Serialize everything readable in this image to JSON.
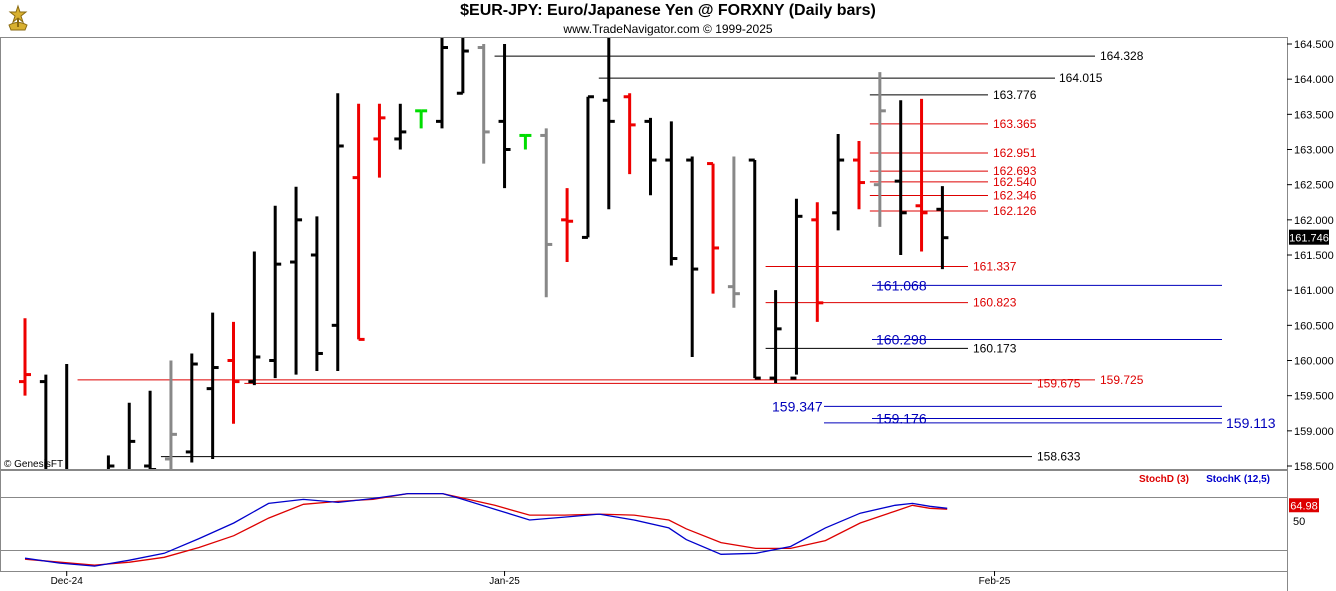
{
  "header": {
    "title": "$EUR-JPY:  Euro/Japanese Yen @ FORXNY  (Daily bars)",
    "subtitle": "www.TradeNavigator.com © 1999-2025",
    "watermark": "© GenesisFT"
  },
  "colors": {
    "up": "#000000",
    "down": "#ee0000",
    "doji_up": "#00dd00",
    "gray": "#888888",
    "red_line": "#dd0000",
    "blue_line": "#0000bb",
    "black_line": "#000000",
    "stochD": "#dd0000",
    "stochK": "#0000cc"
  },
  "chart_data": [
    {
      "type": "ohlc",
      "title": "$EUR-JPY: Euro/Japanese Yen @ FORXNY (Daily bars)",
      "y_axis_ticks": [
        "164.500",
        "164.000",
        "163.500",
        "163.000",
        "162.500",
        "162.000",
        "161.500",
        "161.000",
        "160.500",
        "160.000",
        "159.500",
        "159.000",
        "158.500"
      ],
      "ylim": [
        158.4,
        164.5
      ],
      "x_labels": [
        {
          "label": "Dec-24",
          "index": 2
        },
        {
          "label": "Jan-25",
          "index": 23
        },
        {
          "label": "Feb-25",
          "index": 46.5
        }
      ],
      "last_price": "161.746",
      "last_value": 161.746,
      "bars": [
        {
          "o": 159.7,
          "h": 160.6,
          "l": 159.5,
          "c": 159.8,
          "col": "red"
        },
        {
          "o": 159.7,
          "h": 159.8,
          "l": 157.8,
          "c": 158.2,
          "col": "black"
        },
        {
          "o": 158.1,
          "h": 159.95,
          "l": 157.9,
          "c": 158.0,
          "col": "black"
        },
        {
          "o": 158.0,
          "h": 158.3,
          "l": 157.8,
          "c": 158.1,
          "col": "black"
        },
        {
          "o": 158.2,
          "h": 158.65,
          "l": 158.0,
          "c": 158.5,
          "col": "black"
        },
        {
          "o": 158.4,
          "h": 159.4,
          "l": 158.1,
          "c": 158.85,
          "col": "black"
        },
        {
          "o": 158.5,
          "h": 159.57,
          "l": 158.1,
          "c": 158.45,
          "col": "black"
        },
        {
          "o": 158.6,
          "h": 160.0,
          "l": 158.4,
          "c": 158.95,
          "col": "gray"
        },
        {
          "o": 158.7,
          "h": 160.1,
          "l": 158.55,
          "c": 159.95,
          "col": "black"
        },
        {
          "o": 159.6,
          "h": 160.68,
          "l": 158.6,
          "c": 159.9,
          "col": "black"
        },
        {
          "o": 160.0,
          "h": 160.55,
          "l": 159.1,
          "c": 159.7,
          "col": "red"
        },
        {
          "o": 159.7,
          "h": 161.55,
          "l": 159.65,
          "c": 160.05,
          "col": "black"
        },
        {
          "o": 160.0,
          "h": 162.2,
          "l": 159.75,
          "c": 161.37,
          "col": "black"
        },
        {
          "o": 161.4,
          "h": 162.47,
          "l": 159.8,
          "c": 162.0,
          "col": "black"
        },
        {
          "o": 161.5,
          "h": 162.05,
          "l": 159.85,
          "c": 160.1,
          "col": "black"
        },
        {
          "o": 160.5,
          "h": 163.8,
          "l": 159.85,
          "c": 163.05,
          "col": "black"
        },
        {
          "o": 162.6,
          "h": 163.65,
          "l": 160.3,
          "c": 160.3,
          "col": "red"
        },
        {
          "o": 163.15,
          "h": 163.65,
          "l": 162.6,
          "c": 163.45,
          "col": "red"
        },
        {
          "o": 163.15,
          "h": 163.65,
          "l": 163.0,
          "c": 163.25,
          "col": "black"
        },
        {
          "o": 163.55,
          "h": 163.55,
          "l": 163.3,
          "c": 163.55,
          "col": "green"
        },
        {
          "o": 163.4,
          "h": 164.65,
          "l": 163.3,
          "c": 164.45,
          "col": "black"
        },
        {
          "o": 163.8,
          "h": 164.85,
          "l": 163.8,
          "c": 164.4,
          "col": "black"
        },
        {
          "o": 164.45,
          "h": 164.5,
          "l": 162.8,
          "c": 163.25,
          "col": "gray"
        },
        {
          "o": 163.4,
          "h": 164.5,
          "l": 162.45,
          "c": 163.0,
          "col": "black"
        },
        {
          "o": 163.2,
          "h": 163.2,
          "l": 163.0,
          "c": 163.2,
          "col": "green"
        },
        {
          "o": 163.2,
          "h": 163.3,
          "l": 160.9,
          "c": 161.65,
          "col": "gray"
        },
        {
          "o": 162.0,
          "h": 162.45,
          "l": 161.4,
          "c": 161.98,
          "col": "red"
        },
        {
          "o": 161.75,
          "h": 163.75,
          "l": 161.75,
          "c": 163.75,
          "col": "black"
        },
        {
          "o": 163.7,
          "h": 164.9,
          "l": 162.15,
          "c": 163.4,
          "col": "black"
        },
        {
          "o": 163.75,
          "h": 163.8,
          "l": 162.65,
          "c": 163.35,
          "col": "red"
        },
        {
          "o": 163.4,
          "h": 163.45,
          "l": 162.35,
          "c": 162.85,
          "col": "black"
        },
        {
          "o": 162.85,
          "h": 163.4,
          "l": 161.35,
          "c": 161.45,
          "col": "black"
        },
        {
          "o": 162.85,
          "h": 162.9,
          "l": 160.05,
          "c": 161.3,
          "col": "black"
        },
        {
          "o": 162.8,
          "h": 162.8,
          "l": 160.95,
          "c": 161.6,
          "col": "red"
        },
        {
          "o": 161.05,
          "h": 162.9,
          "l": 160.75,
          "c": 160.95,
          "col": "gray"
        },
        {
          "o": 162.85,
          "h": 162.85,
          "l": 159.75,
          "c": 159.75,
          "col": "black"
        },
        {
          "o": 159.75,
          "h": 161.0,
          "l": 159.68,
          "c": 160.45,
          "col": "black"
        },
        {
          "o": 159.75,
          "h": 162.3,
          "l": 159.8,
          "c": 162.05,
          "col": "black"
        },
        {
          "o": 162.0,
          "h": 162.25,
          "l": 160.55,
          "c": 160.82,
          "col": "red"
        },
        {
          "o": 162.1,
          "h": 163.22,
          "l": 161.85,
          "c": 162.85,
          "col": "black"
        },
        {
          "o": 162.85,
          "h": 163.12,
          "l": 162.15,
          "c": 162.53,
          "col": "red"
        },
        {
          "o": 162.5,
          "h": 164.1,
          "l": 161.9,
          "c": 163.55,
          "col": "gray"
        },
        {
          "o": 162.55,
          "h": 163.7,
          "l": 161.5,
          "c": 162.1,
          "col": "black"
        },
        {
          "o": 162.2,
          "h": 163.72,
          "l": 161.55,
          "c": 162.1,
          "col": "red"
        },
        {
          "o": 162.15,
          "h": 162.48,
          "l": 161.3,
          "c": 161.746,
          "col": "black"
        }
      ],
      "levels": [
        {
          "label": "164.328",
          "value": 164.328,
          "color": "black",
          "from": 23
        },
        {
          "label": "164.015",
          "value": 164.015,
          "color": "black",
          "from": 28
        },
        {
          "label": "163.776",
          "value": 163.776,
          "color": "black",
          "from": 41
        },
        {
          "label": "163.365",
          "value": 163.365,
          "color": "red",
          "from": 41
        },
        {
          "label": "162.951",
          "value": 162.951,
          "color": "red",
          "from": 41
        },
        {
          "label": "162.693",
          "value": 162.693,
          "color": "red",
          "from": 41
        },
        {
          "label": "162.540",
          "value": 162.54,
          "color": "red",
          "from": 41
        },
        {
          "label": "162.346",
          "value": 162.346,
          "color": "red",
          "from": 41
        },
        {
          "label": "162.126",
          "value": 162.126,
          "color": "red",
          "from": 41
        },
        {
          "label": "161.337",
          "value": 161.337,
          "color": "red",
          "from": 36
        },
        {
          "label": "160.823",
          "value": 160.823,
          "color": "red",
          "from": 36
        },
        {
          "label": "160.173",
          "value": 160.173,
          "color": "black",
          "from": 36
        },
        {
          "label": "159.725",
          "value": 159.725,
          "color": "red",
          "from": 3
        },
        {
          "label": "159.675",
          "value": 159.675,
          "color": "red",
          "from": 11
        },
        {
          "label": "158.633",
          "value": 158.633,
          "color": "black",
          "from": 7
        }
      ],
      "blue_levels": [
        {
          "label": "161.068",
          "value": 161.068
        },
        {
          "label": "160.298",
          "value": 160.298
        },
        {
          "label": "159.347",
          "value": 159.347
        },
        {
          "label": "159.176",
          "value": 159.176
        },
        {
          "label": "159.113",
          "value": 159.113
        }
      ]
    },
    {
      "type": "line",
      "title": "",
      "legend": [
        {
          "name": "StochD (3)",
          "color": "#dd0000"
        },
        {
          "name": "StochK (12,5)",
          "color": "#0000cc"
        }
      ],
      "y_axis_ticks": [
        "50"
      ],
      "ylim": [
        0,
        100
      ],
      "last_value_label": "64.98",
      "series": [
        {
          "name": "StochD (3)",
          "values": [
            [
              0,
              11
            ],
            [
              2,
              8
            ],
            [
              4,
              5
            ],
            [
              6,
              8
            ],
            [
              8,
              13
            ],
            [
              10,
              23
            ],
            [
              12,
              35
            ],
            [
              14,
              53
            ],
            [
              16,
              67
            ],
            [
              18,
              70
            ],
            [
              20,
              72
            ],
            [
              22,
              78
            ],
            [
              24,
              78
            ],
            [
              25,
              74
            ],
            [
              27,
              66
            ],
            [
              29,
              56
            ],
            [
              31,
              56
            ],
            [
              33,
              57
            ],
            [
              35,
              56
            ],
            [
              37,
              51
            ],
            [
              38,
              42
            ],
            [
              40,
              28
            ],
            [
              42,
              22
            ],
            [
              44,
              22
            ],
            [
              46,
              30
            ],
            [
              48,
              48
            ],
            [
              50,
              60
            ],
            [
              51,
              66
            ],
            [
              52,
              63
            ],
            [
              53,
              62
            ]
          ]
        },
        {
          "name": "StochK (12,5)",
          "values": [
            [
              0,
              12
            ],
            [
              2,
              7
            ],
            [
              4,
              4
            ],
            [
              6,
              10
            ],
            [
              8,
              17
            ],
            [
              10,
              32
            ],
            [
              12,
              48
            ],
            [
              14,
              68
            ],
            [
              16,
              72
            ],
            [
              18,
              69
            ],
            [
              20,
              73
            ],
            [
              22,
              78
            ],
            [
              24,
              78
            ],
            [
              25,
              73
            ],
            [
              27,
              62
            ],
            [
              29,
              51
            ],
            [
              31,
              54
            ],
            [
              33,
              57
            ],
            [
              35,
              51
            ],
            [
              37,
              43
            ],
            [
              38,
              31
            ],
            [
              40,
              16
            ],
            [
              42,
              17
            ],
            [
              44,
              24
            ],
            [
              46,
              43
            ],
            [
              48,
              58
            ],
            [
              50,
              66
            ],
            [
              51,
              68
            ],
            [
              52,
              65
            ],
            [
              53,
              63
            ]
          ]
        }
      ]
    }
  ]
}
